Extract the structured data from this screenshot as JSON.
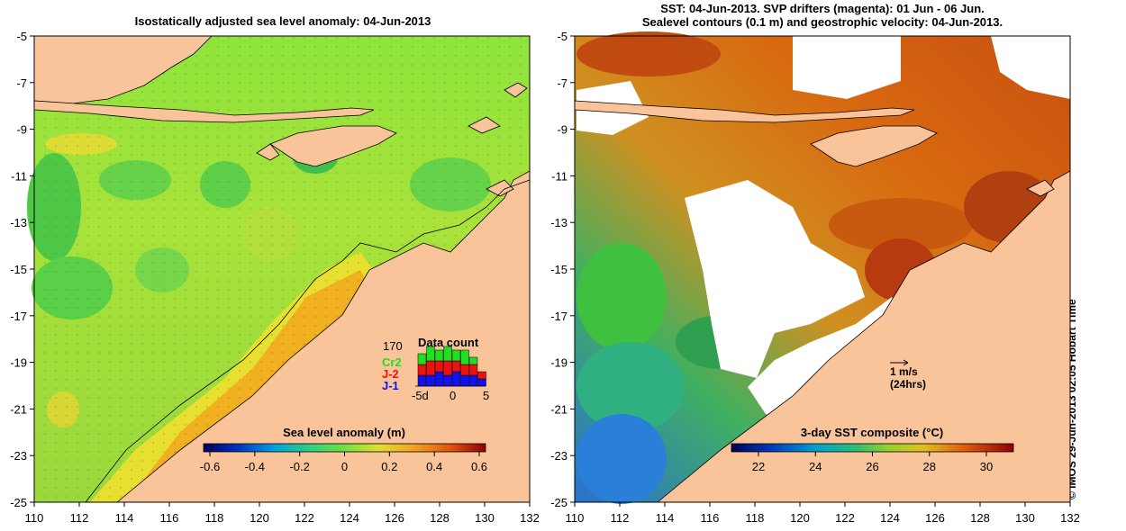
{
  "left_panel": {
    "title": "Isostatically adjusted sea level anomaly: 04-Jun-2013",
    "colorbar": {
      "label": "Sea level anomaly (m)",
      "ticks": [
        "-0.6",
        "-0.4",
        "-0.2",
        "0",
        "0.2",
        "0.4",
        "0.6"
      ]
    },
    "data_count": {
      "title": "Data count",
      "total": "170",
      "sat_cr2": "Cr2",
      "sat_j2": "J-2",
      "sat_j1": "J-1",
      "axis_min": "-5d",
      "axis_zero": "0",
      "axis_max": "5",
      "colors": {
        "cr2": "#22dd22",
        "j2": "#ee1111",
        "j1": "#1111ee"
      },
      "bars": [
        {
          "j1": 3,
          "j2": 3,
          "cr2": 3
        },
        {
          "j1": 3,
          "j2": 4,
          "cr2": 4
        },
        {
          "j1": 4,
          "j2": 3,
          "cr2": 3
        },
        {
          "j1": 3,
          "j2": 4,
          "cr2": 4
        },
        {
          "j1": 4,
          "j2": 3,
          "cr2": 3
        },
        {
          "j1": 3,
          "j2": 3,
          "cr2": 4
        },
        {
          "j1": 3,
          "j2": 3,
          "cr2": 2
        },
        {
          "j1": 2,
          "j2": 2,
          "cr2": 0
        }
      ]
    }
  },
  "right_panel": {
    "title_line1": "SST: 04-Jun-2013. SVP drifters (magenta): 01 Jun - 06 Jun.",
    "title_line2": "Sealevel contours (0.1 m) and geostrophic velocity: 04-Jun-2013.",
    "scale_label": "1 m/s",
    "scale_sub": "(24hrs)",
    "colorbar": {
      "label": "3-day SST composite (°C)",
      "ticks": [
        "22",
        "24",
        "26",
        "28",
        "30"
      ]
    }
  },
  "axes": {
    "x_ticks": [
      "110",
      "112",
      "114",
      "116",
      "118",
      "120",
      "122",
      "124",
      "126",
      "128",
      "130",
      "132"
    ],
    "y_ticks": [
      "-5",
      "-7",
      "-9",
      "-11",
      "-13",
      "-15",
      "-17",
      "-19",
      "-21",
      "-23",
      "-25"
    ]
  },
  "credit": "© IMOS 29-Jun-2013 02:05 Hobart Time",
  "colors": {
    "land": "#f9c49a",
    "sla_green": "#7fe040",
    "sla_yellow": "#e8e030",
    "sla_orange": "#f0a020",
    "sst_orange": "#d06010",
    "sst_dark": "#a02810",
    "sst_green": "#40c040",
    "sst_blue": "#2070e0"
  }
}
